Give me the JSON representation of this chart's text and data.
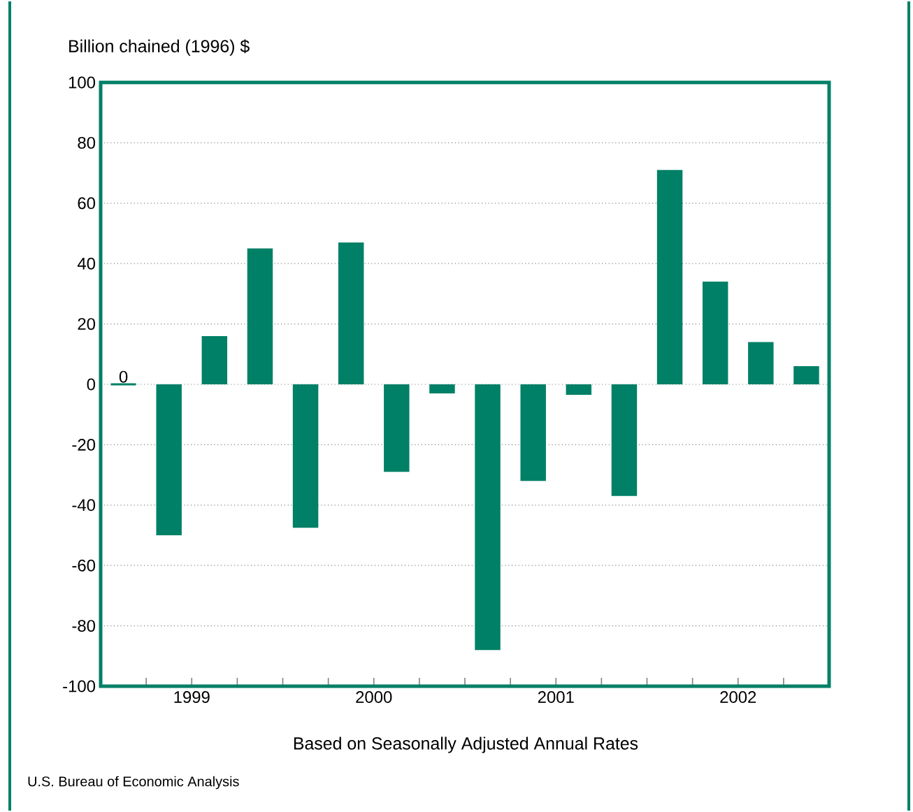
{
  "chart_data": {
    "type": "bar",
    "ylabel": "Billion chained (1996) $",
    "xlabel": "Based on Seasonally Adjusted Annual Rates",
    "annotations": [
      "U.S. Bureau of Economic Analysis"
    ],
    "x": [
      1999.125,
      1999.375,
      1999.625,
      1999.875,
      2000.125,
      2000.375,
      2000.625,
      2000.875,
      2001.125,
      2001.375,
      2001.625,
      2001.875,
      2002.125,
      2002.375,
      2002.625,
      2002.875
    ],
    "values": [
      0,
      -50,
      16,
      45,
      -47.5,
      47,
      -29,
      -3,
      -88,
      -32,
      -3.5,
      -37,
      71,
      34,
      14,
      6
    ],
    "value_labels": [
      "0",
      null,
      null,
      null,
      null,
      null,
      null,
      null,
      null,
      null,
      null,
      null,
      null,
      null,
      null,
      null
    ],
    "color": "#008066",
    "xlim": [
      1999,
      2003
    ],
    "xticks": [
      {
        "value": 1999.25,
        "label": null
      },
      {
        "value": 1999.5,
        "label": "1999"
      },
      {
        "value": 1999.75,
        "label": null
      },
      {
        "value": 2000,
        "label": null
      },
      {
        "value": 2000.25,
        "label": null
      },
      {
        "value": 2000.5,
        "label": "2000"
      },
      {
        "value": 2000.75,
        "label": null
      },
      {
        "value": 2001,
        "label": null
      },
      {
        "value": 2001.25,
        "label": null
      },
      {
        "value": 2001.5,
        "label": "2001"
      },
      {
        "value": 2001.75,
        "label": null
      },
      {
        "value": 2002,
        "label": null
      },
      {
        "value": 2002.25,
        "label": null
      },
      {
        "value": 2002.5,
        "label": "2002"
      },
      {
        "value": 2002.75,
        "label": null
      }
    ],
    "ylim": [
      -100,
      100
    ],
    "yticks": [
      -100,
      -80,
      -60,
      -40,
      -20,
      0,
      20,
      40,
      60,
      80,
      100
    ],
    "grid": "y"
  }
}
